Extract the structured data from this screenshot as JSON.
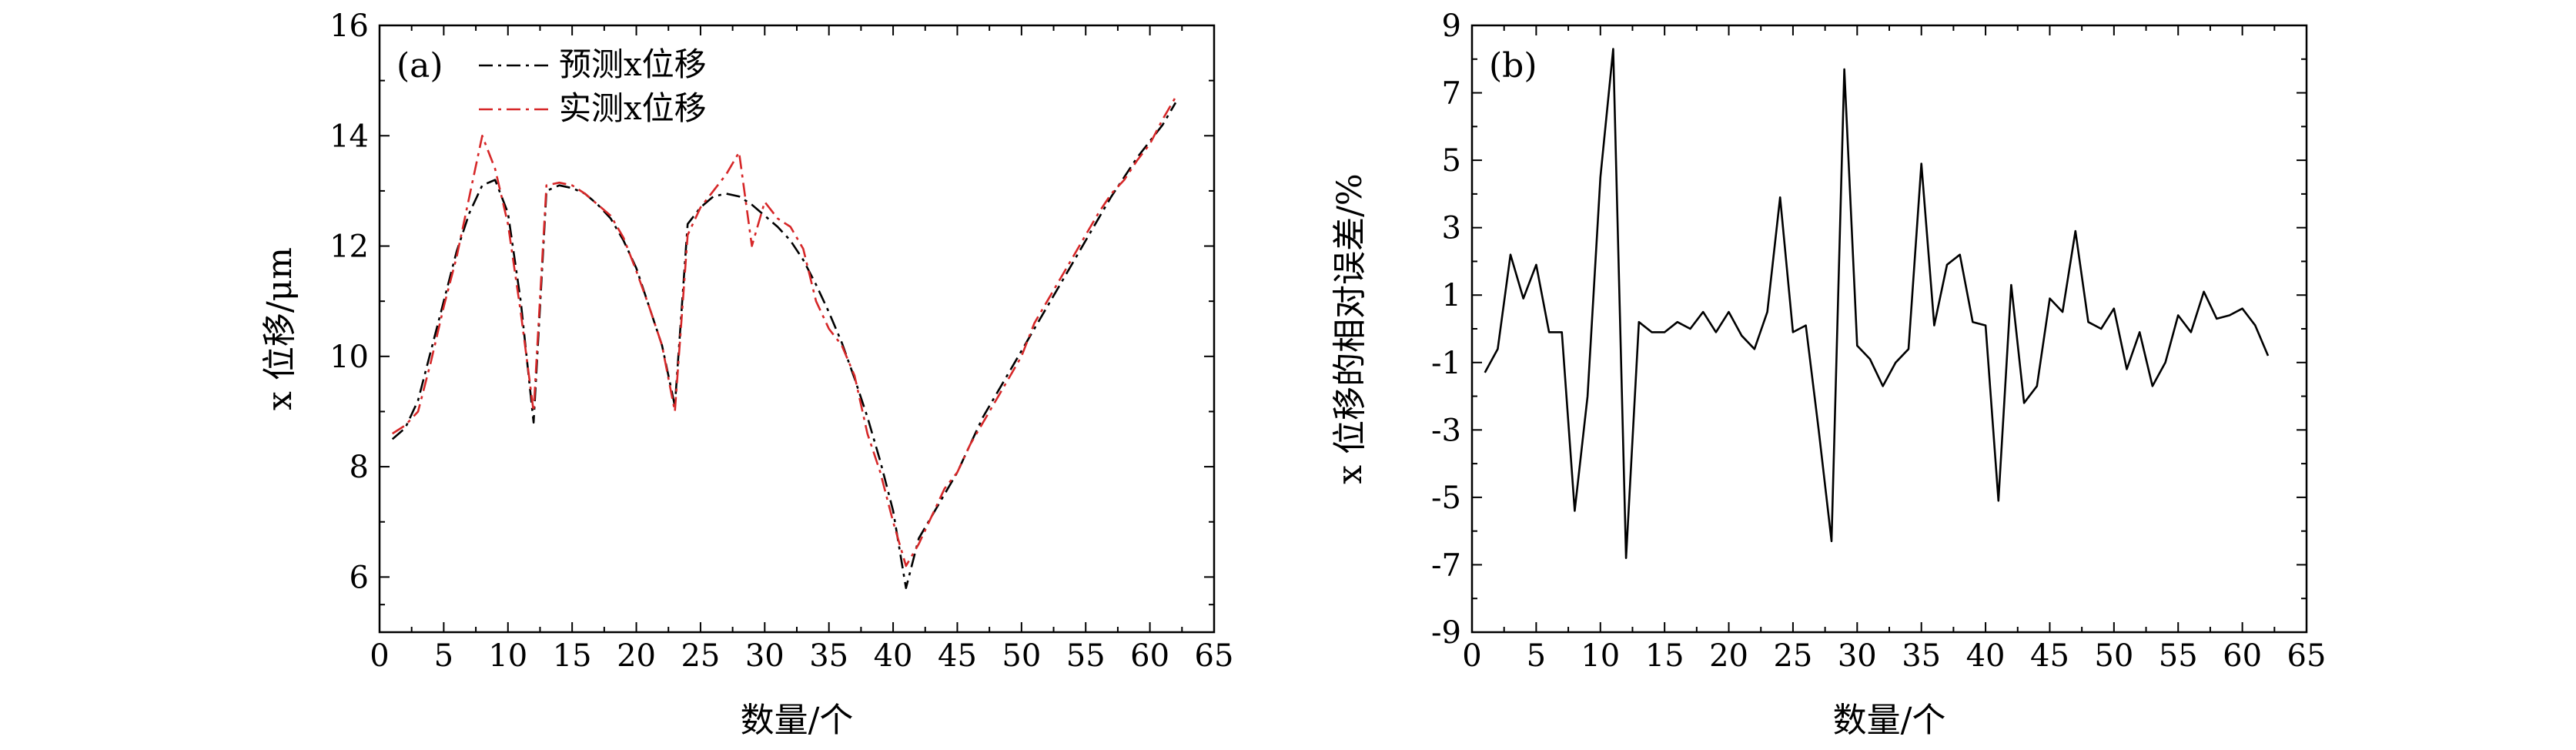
{
  "chart_data": [
    {
      "type": "line",
      "panel_label": "(a)",
      "xlabel": "数量/个",
      "ylabel": "x 位移/μm",
      "xlim": [
        0,
        65
      ],
      "ylim": [
        5,
        16
      ],
      "x_ticks": [
        0,
        5,
        10,
        15,
        20,
        25,
        30,
        35,
        40,
        45,
        50,
        55,
        60,
        65
      ],
      "y_ticks": [
        6,
        8,
        10,
        12,
        14,
        16
      ],
      "legend_position": "top-left",
      "series": [
        {
          "name": "预测x位移",
          "color": "#000000",
          "style": "dash-dot",
          "x": [
            1,
            2,
            3,
            4,
            5,
            6,
            7,
            8,
            9,
            10,
            11,
            12,
            13,
            14,
            15,
            16,
            17,
            18,
            19,
            20,
            21,
            22,
            23,
            24,
            25,
            26,
            27,
            28,
            29,
            30,
            31,
            32,
            33,
            34,
            35,
            36,
            37,
            38,
            39,
            40,
            41,
            42,
            43,
            44,
            45,
            46,
            47,
            48,
            49,
            50,
            51,
            52,
            53,
            54,
            55,
            56,
            57,
            58,
            59,
            60,
            61,
            62
          ],
          "values": [
            8.5,
            8.7,
            9.2,
            10.1,
            11.0,
            11.9,
            12.6,
            13.1,
            13.2,
            12.6,
            11.0,
            8.8,
            13.0,
            13.1,
            13.05,
            12.95,
            12.75,
            12.5,
            12.1,
            11.6,
            10.9,
            10.2,
            9.1,
            12.4,
            12.7,
            12.9,
            12.95,
            12.9,
            12.75,
            12.55,
            12.35,
            12.1,
            11.75,
            11.3,
            10.8,
            10.25,
            9.6,
            8.9,
            8.1,
            7.2,
            5.8,
            6.7,
            7.1,
            7.5,
            7.9,
            8.4,
            8.9,
            9.3,
            9.7,
            10.1,
            10.5,
            10.9,
            11.3,
            11.7,
            12.1,
            12.5,
            12.9,
            13.25,
            13.6,
            13.9,
            14.2,
            14.6
          ]
        },
        {
          "name": "实测x位移",
          "color": "#d62728",
          "style": "dash-dot",
          "x": [
            1,
            2,
            3,
            4,
            5,
            6,
            7,
            8,
            9,
            10,
            11,
            12,
            13,
            14,
            15,
            16,
            17,
            18,
            19,
            20,
            21,
            22,
            23,
            24,
            25,
            26,
            27,
            28,
            29,
            30,
            31,
            32,
            33,
            34,
            35,
            36,
            37,
            38,
            39,
            40,
            41,
            42,
            43,
            44,
            45,
            46,
            47,
            48,
            49,
            50,
            51,
            52,
            53,
            54,
            55,
            56,
            57,
            58,
            59,
            60,
            61,
            62
          ],
          "values": [
            8.6,
            8.75,
            9.0,
            9.9,
            10.9,
            11.8,
            12.9,
            14.0,
            13.4,
            12.4,
            10.8,
            9.0,
            13.1,
            13.15,
            13.1,
            12.95,
            12.75,
            12.55,
            12.15,
            11.55,
            10.9,
            10.2,
            9.0,
            12.2,
            12.7,
            13.0,
            13.3,
            13.7,
            12.0,
            12.8,
            12.5,
            12.35,
            11.95,
            11.0,
            10.5,
            10.2,
            9.65,
            8.6,
            7.9,
            7.0,
            6.2,
            6.6,
            7.1,
            7.6,
            7.9,
            8.4,
            8.8,
            9.2,
            9.6,
            10.0,
            10.6,
            11.0,
            11.4,
            11.8,
            12.2,
            12.6,
            12.95,
            13.2,
            13.55,
            13.85,
            14.3,
            14.7
          ]
        }
      ]
    },
    {
      "type": "line",
      "panel_label": "(b)",
      "xlabel": "数量/个",
      "ylabel": "x 位移的相对误差/%",
      "xlim": [
        0,
        65
      ],
      "ylim": [
        -9,
        9
      ],
      "x_ticks": [
        0,
        5,
        10,
        15,
        20,
        25,
        30,
        35,
        40,
        45,
        50,
        55,
        60,
        65
      ],
      "y_ticks": [
        -9,
        -7,
        -5,
        -3,
        -1,
        1,
        3,
        5,
        7,
        9
      ],
      "series": [
        {
          "name": "相对误差",
          "color": "#000000",
          "style": "solid",
          "x": [
            1,
            2,
            3,
            4,
            5,
            6,
            7,
            8,
            9,
            10,
            11,
            12,
            13,
            14,
            15,
            16,
            17,
            18,
            19,
            20,
            21,
            22,
            23,
            24,
            25,
            26,
            27,
            28,
            29,
            30,
            31,
            32,
            33,
            34,
            35,
            36,
            37,
            38,
            39,
            40,
            41,
            42,
            43,
            44,
            45,
            46,
            47,
            48,
            49,
            50,
            51,
            52,
            53,
            54,
            55,
            56,
            57,
            58,
            59,
            60,
            61,
            62
          ],
          "values": [
            -1.3,
            -0.6,
            2.2,
            0.9,
            1.9,
            -0.1,
            -0.1,
            -5.4,
            -2.0,
            4.5,
            8.3,
            -6.8,
            0.2,
            -0.1,
            -0.1,
            0.2,
            0.0,
            0.5,
            -0.1,
            0.5,
            -0.2,
            -0.6,
            0.5,
            3.9,
            -0.1,
            0.1,
            -3.0,
            -6.3,
            7.7,
            -0.5,
            -0.9,
            -1.7,
            -1.0,
            -0.6,
            4.9,
            0.1,
            1.9,
            2.2,
            0.2,
            0.1,
            -5.1,
            1.3,
            -2.2,
            -1.7,
            0.9,
            0.5,
            2.9,
            0.2,
            0.0,
            0.6,
            -1.2,
            -0.1,
            -1.7,
            -1.0,
            0.4,
            -0.1,
            1.1,
            0.3,
            0.4,
            0.6,
            0.1,
            -0.8
          ]
        }
      ]
    }
  ]
}
